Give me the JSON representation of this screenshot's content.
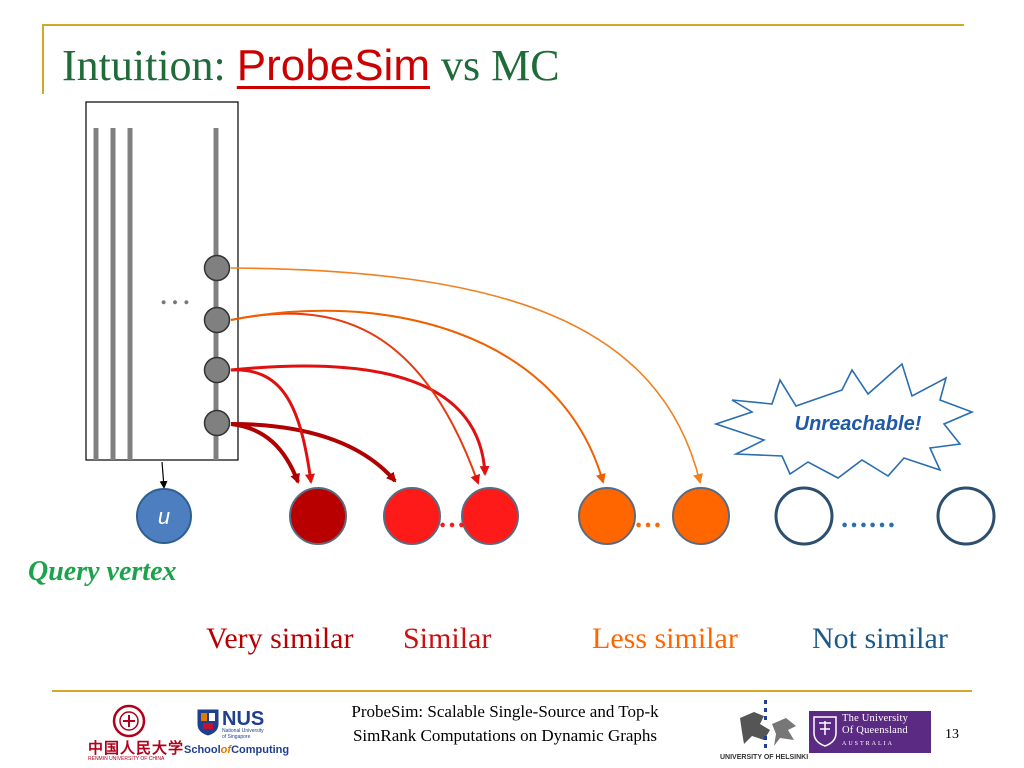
{
  "title": {
    "prefix": "Intuition: ",
    "accent": "ProbeSim",
    "suffix": " vs MC"
  },
  "diagram": {
    "ellipsis_walks": "…",
    "query_node_label": "u",
    "query_label": "Query vertex",
    "burst_label": "Unreachable!",
    "ellipsis_similar": "…",
    "ellipsis_less": "…",
    "ellipsis_not": "……"
  },
  "categories": {
    "very_similar": "Very similar",
    "similar": "Similar",
    "less_similar": "Less similar",
    "not_similar": "Not similar"
  },
  "colors": {
    "title": "#1f6b3a",
    "accent": "#cc0000",
    "very_similar": "#b80000",
    "similar": "#ff1a1a",
    "less_similar": "#ff6600",
    "not_similar": "#1a5a8a",
    "query_label": "#1aa34a",
    "query_node": "#4d7fc0",
    "rule": "#d4a826"
  },
  "footer": {
    "line1": "ProbeSim: Scalable Single-Source and Top-k",
    "line2": "SimRank Computations on Dynamic Graphs",
    "page": "13"
  },
  "logos": {
    "renmin_cn": "中国人民大学",
    "renmin_en": "RENMIN UNIVERSITY OF CHINA",
    "nus": "NUS",
    "nus_sub": "National University of Singapore",
    "soc_left": "School",
    "soc_of": "of",
    "soc_right": "Computing",
    "helsinki": "UNIVERSITY OF HELSINKI",
    "uq_line1": "The University",
    "uq_line2": "Of Queensland",
    "uq_line3": "AUSTRALIA"
  }
}
